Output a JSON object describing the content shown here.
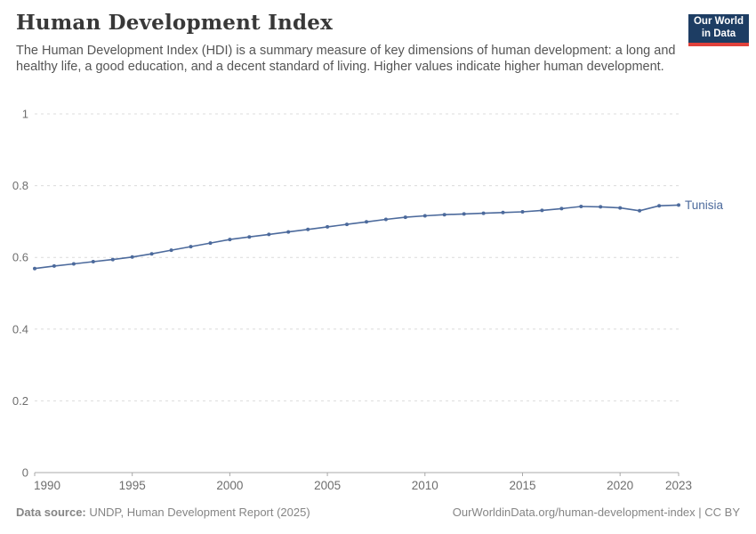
{
  "header": {
    "title": "Human Development Index",
    "subtitle": "The Human Development Index (HDI) is a summary measure of key dimensions of human development: a long and healthy life, a good education, and a decent standard of living. Higher values indicate higher human development.",
    "logo": {
      "line1": "Our World",
      "line2": "in Data"
    }
  },
  "chart_data": {
    "type": "line",
    "title": "Human Development Index",
    "xlabel": "",
    "ylabel": "",
    "xlim": [
      1990,
      2023
    ],
    "ylim": [
      0,
      1
    ],
    "grid": "horizontal-dashed",
    "legend_position": "end-of-line-label",
    "x": [
      1990,
      1991,
      1992,
      1993,
      1994,
      1995,
      1996,
      1997,
      1998,
      1999,
      2000,
      2001,
      2002,
      2003,
      2004,
      2005,
      2006,
      2007,
      2008,
      2009,
      2010,
      2011,
      2012,
      2013,
      2014,
      2015,
      2016,
      2017,
      2018,
      2019,
      2020,
      2021,
      2022,
      2023
    ],
    "series": [
      {
        "name": "Tunisia",
        "values": [
          0.569,
          0.576,
          0.582,
          0.588,
          0.594,
          0.601,
          0.61,
          0.62,
          0.63,
          0.64,
          0.65,
          0.657,
          0.664,
          0.671,
          0.678,
          0.685,
          0.692,
          0.699,
          0.706,
          0.712,
          0.716,
          0.719,
          0.721,
          0.723,
          0.725,
          0.727,
          0.731,
          0.736,
          0.742,
          0.741,
          0.738,
          0.73,
          0.744,
          0.746
        ]
      }
    ],
    "xticks": [
      1990,
      1995,
      2000,
      2005,
      2010,
      2015,
      2020,
      2023
    ],
    "yticks": [
      0,
      0.2,
      0.4,
      0.6,
      0.8,
      1
    ],
    "ytick_labels": [
      "0",
      "0.2",
      "0.4",
      "0.6",
      "0.8",
      "1"
    ],
    "line_color": "#4C6A9C",
    "colors": {
      "grid": "#dcdcdc",
      "axis": "#a8a8a8",
      "tick_text": "#6e6e6e"
    }
  },
  "footer": {
    "source_label": "Data source:",
    "source_text": " UNDP, Human Development Report (2025)",
    "right_text": "OurWorldinData.org/human-development-index | CC BY"
  },
  "colors": {
    "logo_bg": "#1d3d63",
    "logo_accent": "#e0413b",
    "accent_line": "#4C6A9C"
  }
}
